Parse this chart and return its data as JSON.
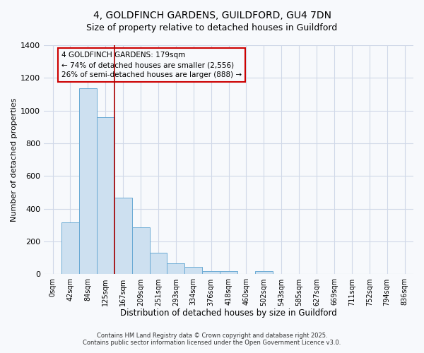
{
  "title": "4, GOLDFINCH GARDENS, GUILDFORD, GU4 7DN",
  "subtitle": "Size of property relative to detached houses in Guildford",
  "xlabel": "Distribution of detached houses by size in Guildford",
  "ylabel": "Number of detached properties",
  "bar_labels": [
    "0sqm",
    "42sqm",
    "84sqm",
    "125sqm",
    "167sqm",
    "209sqm",
    "251sqm",
    "293sqm",
    "334sqm",
    "376sqm",
    "418sqm",
    "460sqm",
    "502sqm",
    "543sqm",
    "585sqm",
    "627sqm",
    "669sqm",
    "711sqm",
    "752sqm",
    "794sqm",
    "836sqm"
  ],
  "bar_values": [
    0,
    315,
    1135,
    960,
    470,
    285,
    130,
    65,
    45,
    20,
    20,
    0,
    20,
    0,
    0,
    0,
    0,
    0,
    0,
    0,
    0
  ],
  "bar_color": "#cde0f0",
  "bar_edge_color": "#6aaad4",
  "vline_x_index": 4,
  "vline_color": "#aa0000",
  "annotation_title": "4 GOLDFINCH GARDENS: 179sqm",
  "annotation_line1": "← 74% of detached houses are smaller (2,556)",
  "annotation_line2": "26% of semi-detached houses are larger (888) →",
  "annotation_box_color": "#cc0000",
  "ylim": [
    0,
    1400
  ],
  "yticks": [
    0,
    200,
    400,
    600,
    800,
    1000,
    1200,
    1400
  ],
  "footer1": "Contains HM Land Registry data © Crown copyright and database right 2025.",
  "footer2": "Contains public sector information licensed under the Open Government Licence v3.0.",
  "bg_color": "#f7f9fc",
  "grid_color": "#d0d8e8",
  "title_fontsize": 10,
  "subtitle_fontsize": 9
}
